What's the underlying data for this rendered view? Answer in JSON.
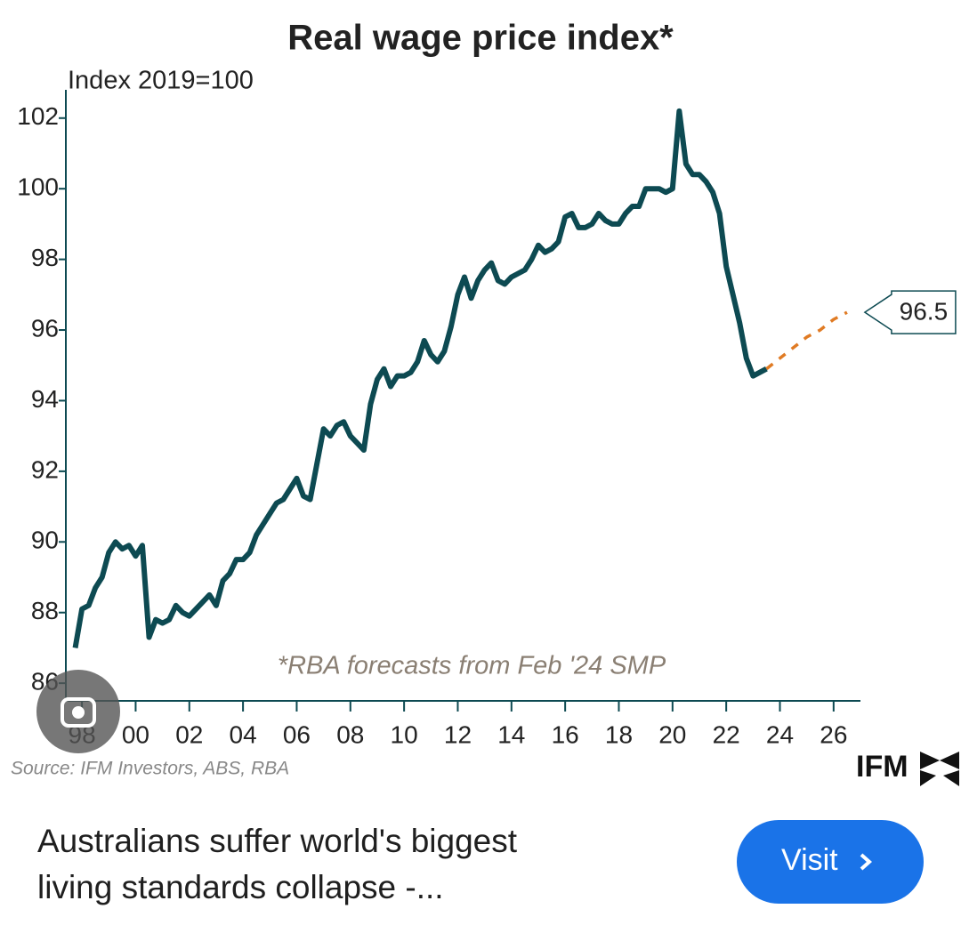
{
  "chart_data": {
    "type": "line",
    "title": "Real wage price index*",
    "y_label": "Index 2019=100",
    "annotation": "*RBA forecasts from Feb '24 SMP",
    "x": [
      1997.75,
      1998,
      1998.25,
      1998.5,
      1998.75,
      1999,
      1999.25,
      1999.5,
      1999.75,
      2000,
      2000.25,
      2000.5,
      2000.75,
      2001,
      2001.25,
      2001.5,
      2001.75,
      2002,
      2002.25,
      2002.5,
      2002.75,
      2003,
      2003.25,
      2003.5,
      2003.75,
      2004,
      2004.25,
      2004.5,
      2004.75,
      2005,
      2005.25,
      2005.5,
      2005.75,
      2006,
      2006.25,
      2006.5,
      2006.75,
      2007,
      2007.25,
      2007.5,
      2007.75,
      2008,
      2008.25,
      2008.5,
      2008.75,
      2009,
      2009.25,
      2009.5,
      2009.75,
      2010,
      2010.25,
      2010.5,
      2010.75,
      2011,
      2011.25,
      2011.5,
      2011.75,
      2012,
      2012.25,
      2012.5,
      2012.75,
      2013,
      2013.25,
      2013.5,
      2013.75,
      2014,
      2014.25,
      2014.5,
      2014.75,
      2015,
      2015.25,
      2015.5,
      2015.75,
      2016,
      2016.25,
      2016.5,
      2016.75,
      2017,
      2017.25,
      2017.5,
      2017.75,
      2018,
      2018.25,
      2018.5,
      2018.75,
      2019,
      2019.25,
      2019.5,
      2019.75,
      2020,
      2020.25,
      2020.5,
      2020.75,
      2021,
      2021.25,
      2021.5,
      2021.75,
      2022,
      2022.25,
      2022.5,
      2022.75,
      2023,
      2023.25,
      2023.5
    ],
    "series": [
      {
        "color": "#0d4a52",
        "values": [
          87.0,
          88.1,
          88.2,
          88.7,
          89.0,
          89.7,
          90.0,
          89.8,
          89.9,
          89.6,
          89.9,
          87.3,
          87.8,
          87.7,
          87.8,
          88.2,
          88.0,
          87.9,
          88.1,
          88.3,
          88.5,
          88.2,
          88.9,
          89.1,
          89.5,
          89.5,
          89.7,
          90.2,
          90.5,
          90.8,
          91.1,
          91.2,
          91.5,
          91.8,
          91.3,
          91.2,
          92.2,
          93.2,
          93.0,
          93.3,
          93.4,
          93.0,
          92.8,
          92.6,
          93.9,
          94.6,
          94.9,
          94.4,
          94.7,
          94.7,
          94.8,
          95.1,
          95.7,
          95.3,
          95.1,
          95.4,
          96.1,
          97.0,
          97.5,
          96.9,
          97.4,
          97.7,
          97.9,
          97.4,
          97.3,
          97.5,
          97.6,
          97.7,
          98.0,
          98.4,
          98.2,
          98.3,
          98.5,
          99.2,
          99.3,
          98.9,
          98.9,
          99.0,
          99.3,
          99.1,
          99.0,
          99.0,
          99.3,
          99.5,
          99.5,
          100.0,
          100.0,
          100.0,
          99.9,
          100.0,
          102.2,
          100.7,
          100.4,
          100.4,
          100.2,
          99.9,
          99.3,
          97.8,
          97.0,
          96.2,
          95.2,
          94.7,
          94.8,
          94.9
        ]
      },
      {
        "color": "#e07b24",
        "dashed": true,
        "x": [
          2023.5,
          2024,
          2024.5,
          2025,
          2025.5,
          2026,
          2026.5
        ],
        "values": [
          94.9,
          95.2,
          95.5,
          95.8,
          96.0,
          96.3,
          96.5
        ],
        "end_label": true
      }
    ],
    "xlim": [
      1997.4,
      2027
    ],
    "ylim": [
      85.5,
      102.8
    ],
    "xticks": [
      {
        "value": 1998,
        "label": "98"
      },
      {
        "value": 2000,
        "label": "00"
      },
      {
        "value": 2002,
        "label": "02"
      },
      {
        "value": 2004,
        "label": "04"
      },
      {
        "value": 2006,
        "label": "06"
      },
      {
        "value": 2008,
        "label": "08"
      },
      {
        "value": 2010,
        "label": "10"
      },
      {
        "value": 2012,
        "label": "12"
      },
      {
        "value": 2014,
        "label": "14"
      },
      {
        "value": 2016,
        "label": "16"
      },
      {
        "value": 2018,
        "label": "18"
      },
      {
        "value": 2020,
        "label": "20"
      },
      {
        "value": 2022,
        "label": "22"
      },
      {
        "value": 2024,
        "label": "24"
      },
      {
        "value": 2026,
        "label": "26"
      }
    ],
    "yticks": [
      86,
      88,
      90,
      92,
      94,
      96,
      98,
      100,
      102
    ],
    "grid": false
  },
  "source": "Source: IFM Investors, ABS, RBA",
  "logo": "IFM",
  "headline": [
    "Australians suffer world's biggest",
    "living standards collapse -..."
  ],
  "button": "Visit"
}
